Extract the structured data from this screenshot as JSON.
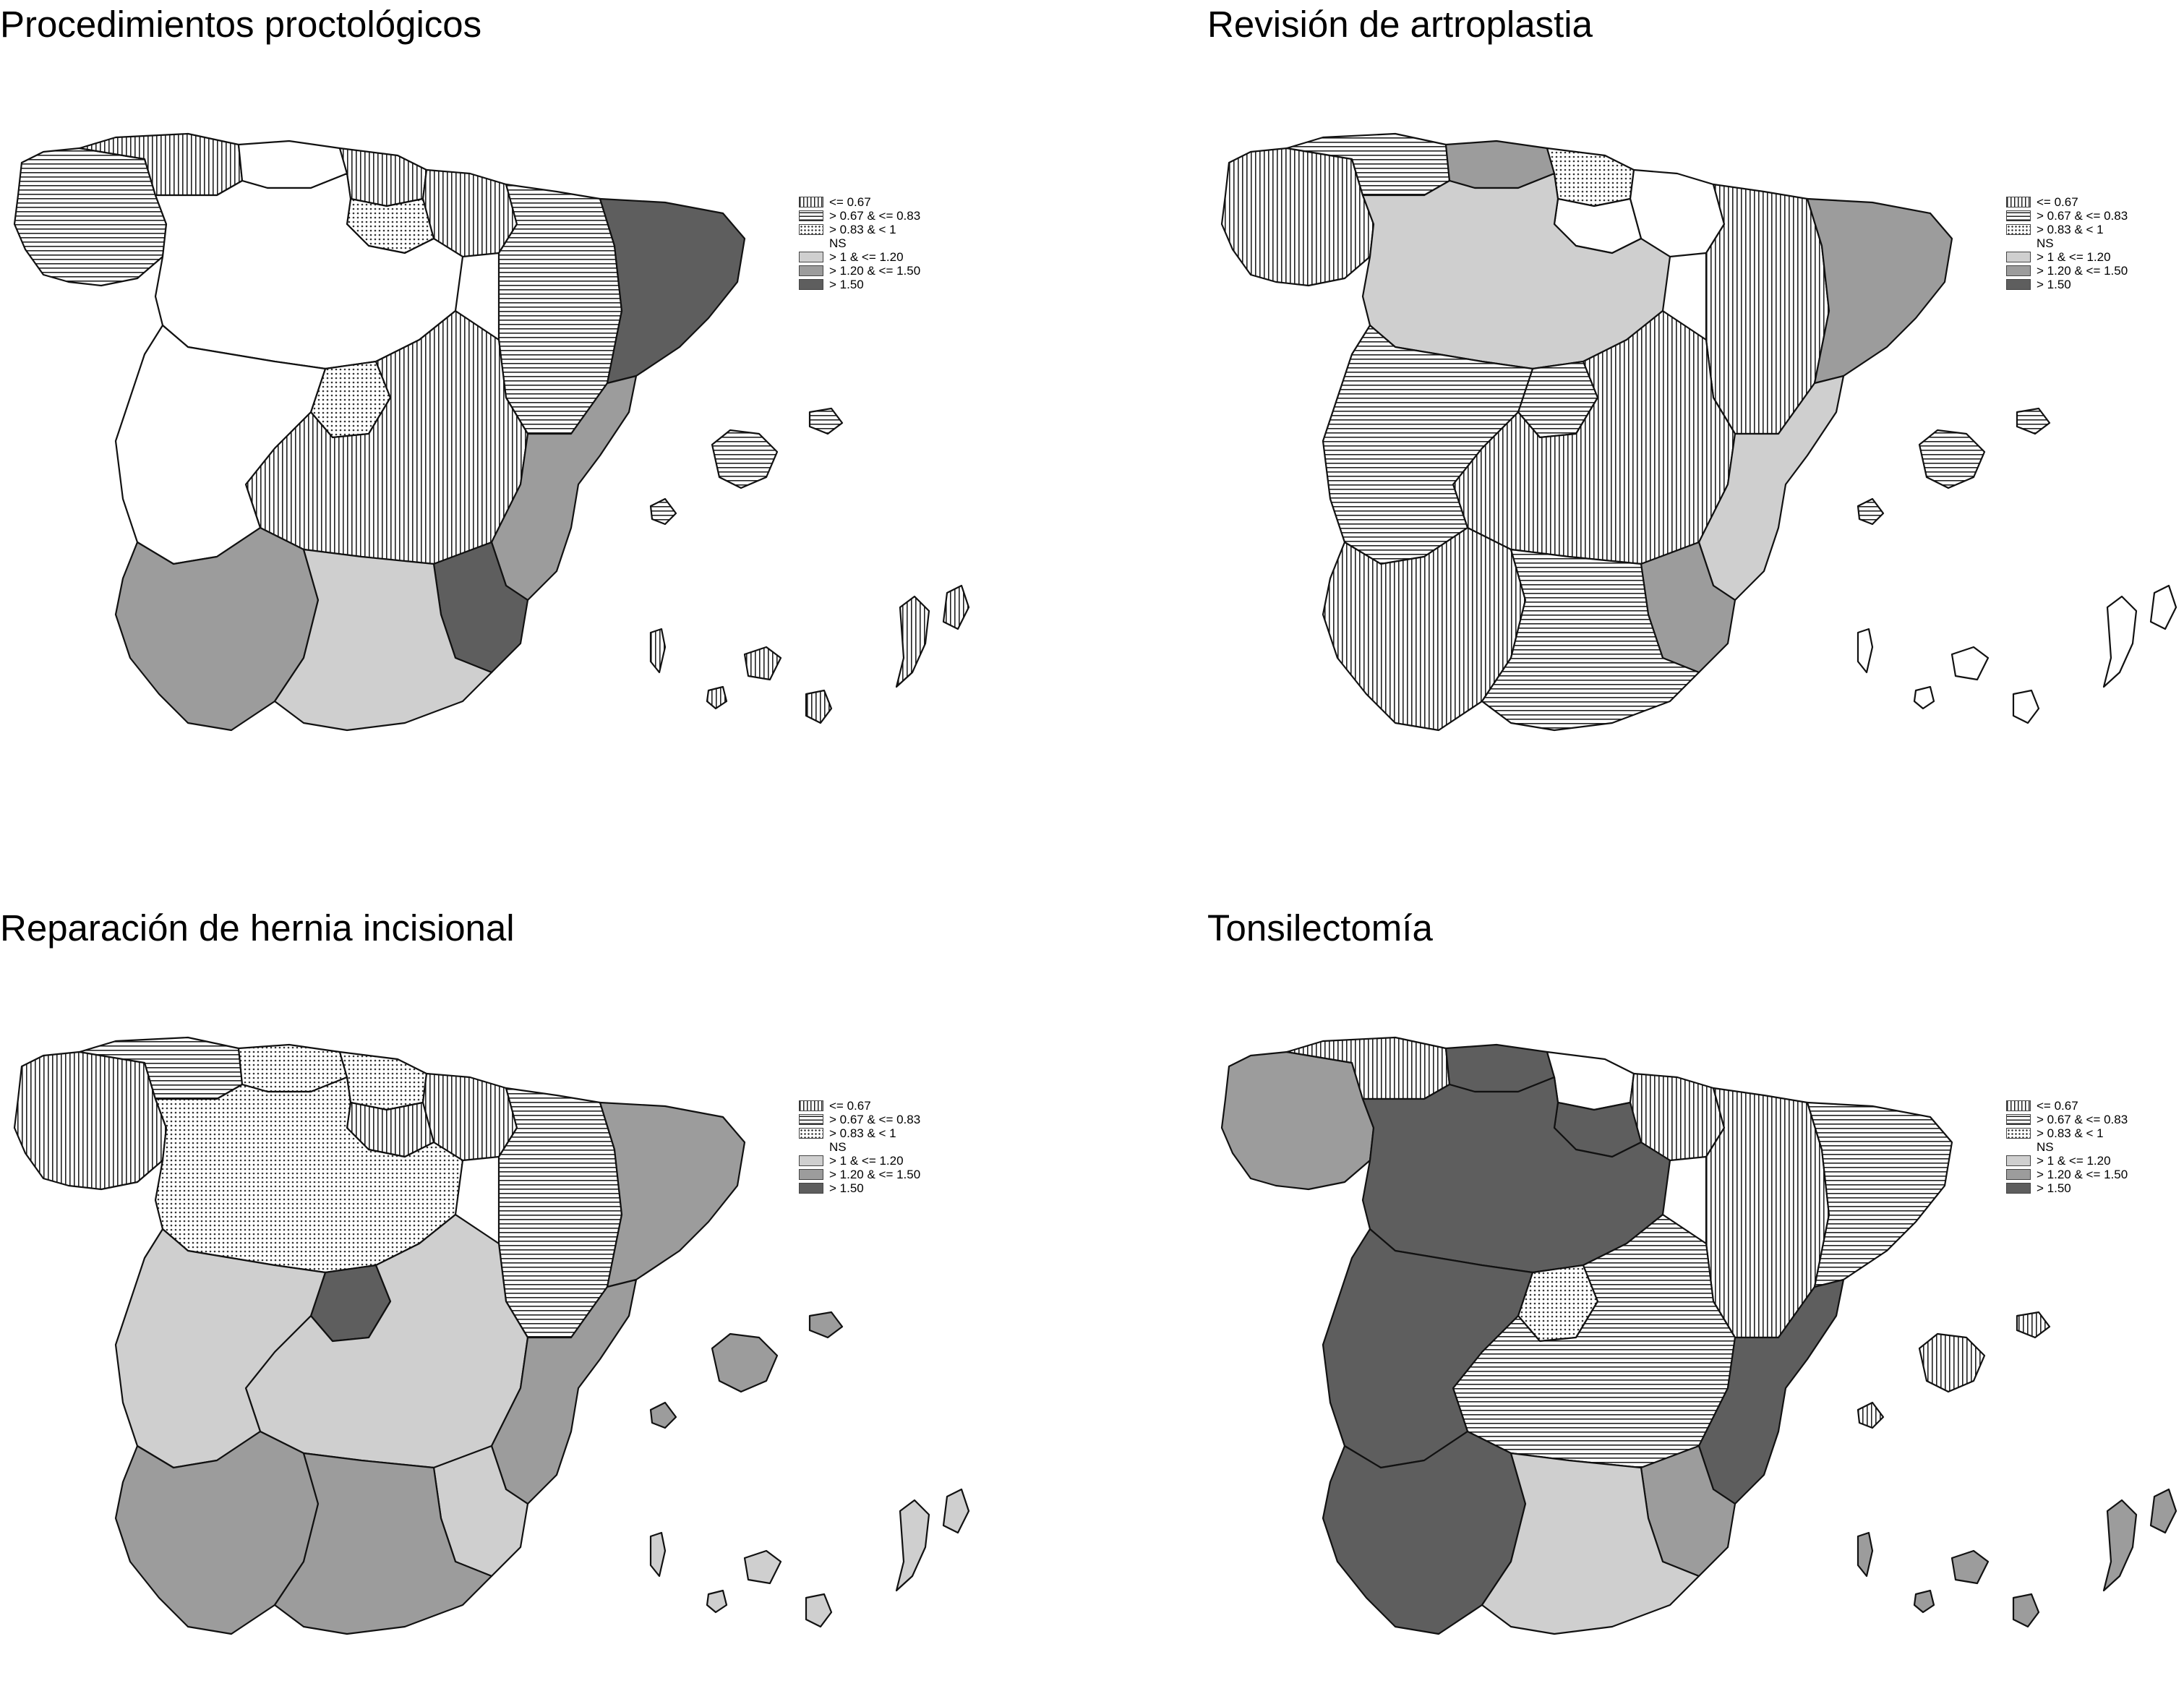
{
  "legend": [
    {
      "label": "<= 0.67",
      "pattern": "vertical-stripes"
    },
    {
      "label": "> 0.67 & <= 0.83",
      "pattern": "horizontal-stripes"
    },
    {
      "label": "> 0.83 & < 1",
      "pattern": "dots"
    },
    {
      "label": "NS",
      "pattern": "white"
    },
    {
      "label": "> 1 & <= 1.20",
      "pattern": "light-gray",
      "color": "#cfcfcf"
    },
    {
      "label": "> 1.20 & <= 1.50",
      "pattern": "mid-gray",
      "color": "#9c9c9c"
    },
    {
      "label": "> 1.50",
      "pattern": "dark-gray",
      "color": "#5e5e5e"
    }
  ],
  "maps": [
    {
      "title": "Procedimientos proctológicos",
      "regions": {
        "galicia": "horiz",
        "asturias": "vert",
        "cantabria": "white",
        "paisvasco": "vert",
        "navarra": "vert",
        "aragon": "horiz",
        "cataluna": "dark",
        "castillaleon": "white",
        "rioja": "dots",
        "madrid": "dots",
        "castillamancha": "vert",
        "extremadura": "white",
        "valencia": "mid",
        "murcia": "dark",
        "andalucia_w": "mid",
        "andalucia_e": "light",
        "baleares": "horiz",
        "canarias": "vert"
      }
    },
    {
      "title": "Revisión de artroplastia",
      "regions": {
        "galicia": "vert",
        "asturias": "horiz",
        "cantabria": "mid",
        "paisvasco": "dots",
        "navarra": "white",
        "aragon": "vert",
        "cataluna": "mid",
        "castillaleon": "light",
        "rioja": "white",
        "madrid": "horiz",
        "castillamancha": "vert",
        "extremadura": "horiz",
        "valencia": "light",
        "murcia": "mid",
        "andalucia_w": "vert",
        "andalucia_e": "horiz",
        "baleares": "horiz",
        "canarias": "white"
      }
    },
    {
      "title": "Reparación de hernia incisional",
      "regions": {
        "galicia": "vert",
        "asturias": "horiz",
        "cantabria": "dots",
        "paisvasco": "dots",
        "navarra": "vert",
        "aragon": "horiz",
        "cataluna": "mid",
        "castillaleon": "dots",
        "rioja": "vert",
        "madrid": "dark",
        "castillamancha": "light",
        "extremadura": "light",
        "valencia": "mid",
        "murcia": "light",
        "andalucia_w": "mid",
        "andalucia_e": "mid",
        "baleares": "mid",
        "canarias": "light"
      }
    },
    {
      "title": "Tonsilectomía",
      "regions": {
        "galicia": "mid",
        "asturias": "vert",
        "cantabria": "dark",
        "paisvasco": "white",
        "navarra": "vert",
        "aragon": "vert",
        "cataluna": "horiz",
        "castillaleon": "dark",
        "rioja": "dark",
        "madrid": "dots",
        "castillamancha": "horiz",
        "extremadura": "dark",
        "valencia": "dark",
        "murcia": "mid",
        "andalucia_w": "dark",
        "andalucia_e": "light",
        "baleares": "vert",
        "canarias": "mid"
      }
    }
  ]
}
